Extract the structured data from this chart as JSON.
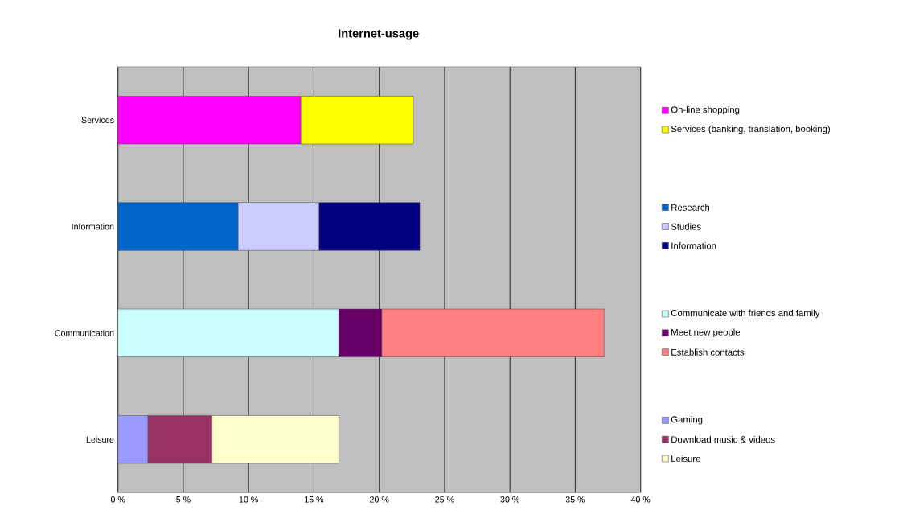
{
  "chart_data": {
    "type": "bar",
    "title": "Internet-usage",
    "orientation": "horizontal",
    "stacked": true,
    "categories": [
      "Services",
      "Information",
      "Communication",
      "Leisure"
    ],
    "series": [
      {
        "name": "On-line shopping",
        "color": "#ff00ff",
        "values": [
          14.0,
          null,
          null,
          null
        ]
      },
      {
        "name": "Services (banking, translation, booking)",
        "color": "#ffff00",
        "values": [
          8.6,
          null,
          null,
          null
        ]
      },
      {
        "name": "Research",
        "color": "#0066cc",
        "values": [
          null,
          9.2,
          null,
          null
        ]
      },
      {
        "name": "Studies",
        "color": "#ccccff",
        "values": [
          null,
          6.2,
          null,
          null
        ]
      },
      {
        "name": "Information",
        "color": "#000080",
        "values": [
          null,
          7.7,
          null,
          null
        ]
      },
      {
        "name": "Communicate with friends and family",
        "color": "#ccffff",
        "values": [
          null,
          null,
          16.9,
          null
        ]
      },
      {
        "name": "Meet new people",
        "color": "#660066",
        "values": [
          null,
          null,
          3.3,
          null
        ]
      },
      {
        "name": "Establish contacts",
        "color": "#ff8080",
        "values": [
          null,
          null,
          17.0,
          null
        ]
      },
      {
        "name": "Gaming",
        "color": "#9999ff",
        "values": [
          null,
          null,
          null,
          2.3
        ]
      },
      {
        "name": "Download music & videos",
        "color": "#993366",
        "values": [
          null,
          null,
          null,
          4.9
        ]
      },
      {
        "name": "Leisure",
        "color": "#ffffcc",
        "values": [
          null,
          null,
          null,
          9.7
        ]
      }
    ],
    "xlim": [
      0,
      40
    ],
    "xticks": [
      {
        "value": 0,
        "label": "0 %"
      },
      {
        "value": 5,
        "label": "5 %"
      },
      {
        "value": 10,
        "label": "10 %"
      },
      {
        "value": 15,
        "label": "15 %"
      },
      {
        "value": 20,
        "label": "20 %"
      },
      {
        "value": 25,
        "label": "25 %"
      },
      {
        "value": 30,
        "label": "30 %"
      },
      {
        "value": 35,
        "label": "35 %"
      },
      {
        "value": 40,
        "label": "40 %"
      }
    ],
    "grid": "x",
    "legend": "right"
  }
}
